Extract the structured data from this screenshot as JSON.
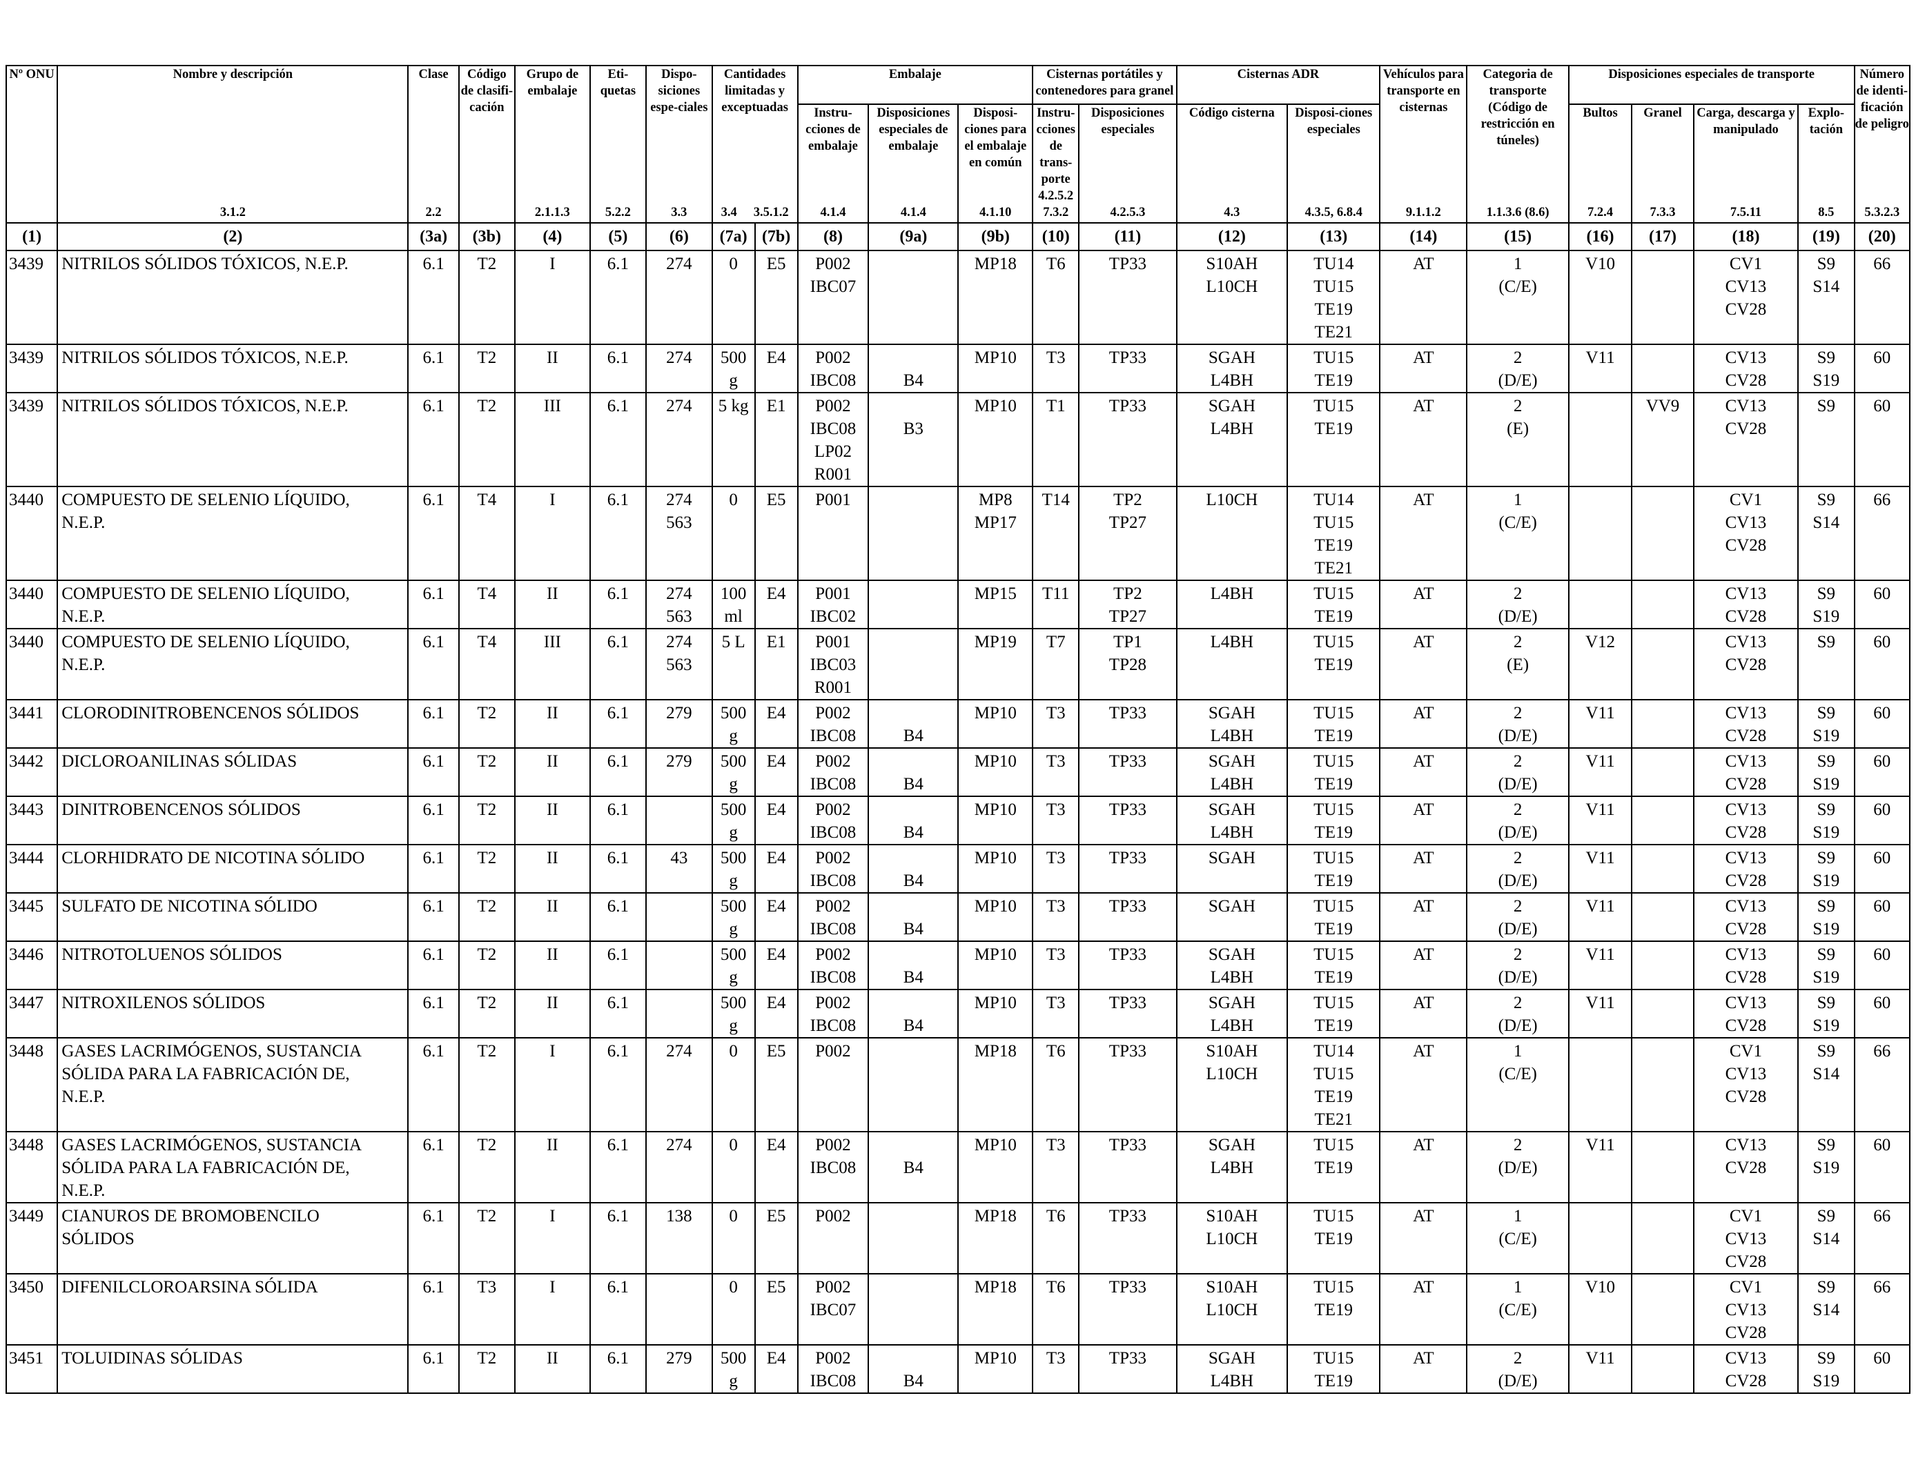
{
  "header": {
    "c1": {
      "label": "Nº ONU",
      "ref": ""
    },
    "c2": {
      "label": "Nombre y descripción",
      "ref": "3.1.2"
    },
    "c3a": {
      "label": "Clase",
      "ref": "2.2"
    },
    "c3b": {
      "label": "Código de clasifi-cación",
      "ref": ""
    },
    "c4": {
      "label": "Grupo de embalaje",
      "ref": "2.1.1.3"
    },
    "c5": {
      "label": "Eti-quetas",
      "ref": "5.2.2"
    },
    "c6": {
      "label": "Dispo-siciones espe-ciales",
      "ref": "3.3"
    },
    "c7": {
      "label": "Cantidades limitadas y exceptuadas",
      "ref_a": "3.4",
      "ref_b": "3.5.1.2"
    },
    "c8_9": {
      "label": "Embalaje"
    },
    "c8": {
      "label": "Instru-cciones de embalaje",
      "ref": "4.1.4"
    },
    "c9a": {
      "label": "Disposiciones especiales de embalaje",
      "ref": "4.1.4"
    },
    "c9b": {
      "label": "Disposi-ciones para el embalaje en común",
      "ref": "4.1.10"
    },
    "c10_11": {
      "label": "Cisternas portátiles y contenedores para granel"
    },
    "c10": {
      "label": "Instru-cciones de trans-porte",
      "ref": "4.2.5.2 7.3.2"
    },
    "c11": {
      "label": "Disposiciones especiales",
      "ref": "4.2.5.3"
    },
    "c12_13": {
      "label": "Cisternas ADR"
    },
    "c12": {
      "label": "Código cisterna",
      "ref": "4.3"
    },
    "c13": {
      "label": "Disposi-ciones especiales",
      "ref": "4.3.5, 6.8.4"
    },
    "c14": {
      "label": "Vehículos para transporte en cisternas",
      "ref": "9.1.1.2"
    },
    "c15": {
      "label": "Categoria de transporte (Código de restricción en túneles)",
      "ref": "1.1.3.6 (8.6)"
    },
    "c16_19": {
      "label": "Disposiciones especiales de transporte"
    },
    "c16": {
      "label": "Bultos",
      "ref": "7.2.4"
    },
    "c17": {
      "label": "Granel",
      "ref": "7.3.3"
    },
    "c18": {
      "label": "Carga, descarga y manipulado",
      "ref": "7.5.11"
    },
    "c19": {
      "label": "Explo-tación",
      "ref": "8.5"
    },
    "c20": {
      "label": "Número de identi-ficación de peligro",
      "ref": "5.3.2.3"
    },
    "numbers": [
      "(1)",
      "(2)",
      "(3a)",
      "(3b)",
      "(4)",
      "(5)",
      "(6)",
      "(7a)",
      "(7b)",
      "(8)",
      "(9a)",
      "(9b)",
      "(10)",
      "(11)",
      "(12)",
      "(13)",
      "(14)",
      "(15)",
      "(16)",
      "(17)",
      "(18)",
      "(19)",
      "(20)"
    ]
  },
  "rows": [
    [
      "3439",
      "NITRILOS SÓLIDOS TÓXICOS, N.E.P.",
      "6.1",
      "T2",
      "I",
      "6.1",
      "274",
      "0",
      "E5",
      "P002|IBC07",
      "",
      "MP18",
      "T6",
      "TP33",
      "S10AH|L10CH",
      "TU14|TU15|TE19|TE21",
      "AT",
      "1|(C/E)",
      "V10",
      "",
      "CV1|CV13|CV28",
      "S9|S14",
      "66"
    ],
    [
      "3439",
      "NITRILOS SÓLIDOS TÓXICOS, N.E.P.",
      "6.1",
      "T2",
      "II",
      "6.1",
      "274",
      "500|g",
      "E4",
      "P002|IBC08",
      "|B4",
      "MP10",
      "T3",
      "TP33",
      "SGAH|L4BH",
      "TU15|TE19",
      "AT",
      "2|(D/E)",
      "V11",
      "",
      "CV13|CV28",
      "S9|S19",
      "60"
    ],
    [
      "3439",
      "NITRILOS SÓLIDOS TÓXICOS, N.E.P.",
      "6.1",
      "T2",
      "III",
      "6.1",
      "274",
      "5 kg",
      "E1",
      "P002|IBC08|LP02|R001",
      "|B3",
      "MP10",
      "T1",
      "TP33",
      "SGAH|L4BH",
      "TU15|TE19",
      "AT",
      "2|(E)",
      "",
      "VV9",
      "CV13|CV28",
      "S9",
      "60"
    ],
    [
      "3440",
      "COMPUESTO DE SELENIO LÍQUIDO,|N.E.P.",
      "6.1",
      "T4",
      "I",
      "6.1",
      "274|563",
      "0",
      "E5",
      "P001",
      "",
      "MP8|MP17",
      "T14",
      "TP2|TP27",
      "L10CH",
      "TU14|TU15|TE19|TE21",
      "AT",
      "1|(C/E)",
      "",
      "",
      "CV1|CV13|CV28",
      "S9|S14",
      "66"
    ],
    [
      "3440",
      "COMPUESTO DE SELENIO LÍQUIDO,|N.E.P.",
      "6.1",
      "T4",
      "II",
      "6.1",
      "274|563",
      "100|ml",
      "E4",
      "P001|IBC02",
      "",
      "MP15",
      "T11",
      "TP2|TP27",
      "L4BH",
      "TU15|TE19",
      "AT",
      "2|(D/E)",
      "",
      "",
      "CV13|CV28",
      "S9|S19",
      "60"
    ],
    [
      "3440",
      "COMPUESTO DE SELENIO LÍQUIDO,|N.E.P.",
      "6.1",
      "T4",
      "III",
      "6.1",
      "274|563",
      "5 L",
      "E1",
      "P001|IBC03|R001",
      "",
      "MP19",
      "T7",
      "TP1|TP28",
      "L4BH",
      "TU15|TE19",
      "AT",
      "2|(E)",
      "V12",
      "",
      "CV13|CV28",
      "S9",
      "60"
    ],
    [
      "3441",
      "CLORODINITROBENCENOS SÓLIDOS",
      "6.1",
      "T2",
      "II",
      "6.1",
      "279",
      "500|g",
      "E4",
      "P002|IBC08",
      "|B4",
      "MP10",
      "T3",
      "TP33",
      "SGAH|L4BH",
      "TU15|TE19",
      "AT",
      "2|(D/E)",
      "V11",
      "",
      "CV13|CV28",
      "S9|S19",
      "60"
    ],
    [
      "3442",
      "DICLOROANILINAS SÓLIDAS",
      "6.1",
      "T2",
      "II",
      "6.1",
      "279",
      "500|g",
      "E4",
      "P002|IBC08",
      "|B4",
      "MP10",
      "T3",
      "TP33",
      "SGAH|L4BH",
      "TU15|TE19",
      "AT",
      "2|(D/E)",
      "V11",
      "",
      "CV13|CV28",
      "S9|S19",
      "60"
    ],
    [
      "3443",
      "DINITROBENCENOS SÓLIDOS",
      "6.1",
      "T2",
      "II",
      "6.1",
      "",
      "500|g",
      "E4",
      "P002|IBC08",
      "|B4",
      "MP10",
      "T3",
      "TP33",
      "SGAH|L4BH",
      "TU15|TE19",
      "AT",
      "2|(D/E)",
      "V11",
      "",
      "CV13|CV28",
      "S9|S19",
      "60"
    ],
    [
      "3444",
      "CLORHIDRATO DE NICOTINA SÓLIDO",
      "6.1",
      "T2",
      "II",
      "6.1",
      "43",
      "500|g",
      "E4",
      "P002|IBC08",
      "|B4",
      "MP10",
      "T3",
      "TP33",
      "SGAH",
      "TU15|TE19",
      "AT",
      "2|(D/E)",
      "V11",
      "",
      "CV13|CV28",
      "S9|S19",
      "60"
    ],
    [
      "3445",
      "SULFATO DE NICOTINA SÓLIDO",
      "6.1",
      "T2",
      "II",
      "6.1",
      "",
      "500|g",
      "E4",
      "P002|IBC08",
      "|B4",
      "MP10",
      "T3",
      "TP33",
      "SGAH",
      "TU15|TE19",
      "AT",
      "2|(D/E)",
      "V11",
      "",
      "CV13|CV28",
      "S9|S19",
      "60"
    ],
    [
      "3446",
      "NITROTOLUENOS SÓLIDOS",
      "6.1",
      "T2",
      "II",
      "6.1",
      "",
      "500|g",
      "E4",
      "P002|IBC08",
      "|B4",
      "MP10",
      "T3",
      "TP33",
      "SGAH|L4BH",
      "TU15|TE19",
      "AT",
      "2|(D/E)",
      "V11",
      "",
      "CV13|CV28",
      "S9|S19",
      "60"
    ],
    [
      "3447",
      "NITROXILENOS SÓLIDOS",
      "6.1",
      "T2",
      "II",
      "6.1",
      "",
      "500|g",
      "E4",
      "P002|IBC08",
      "|B4",
      "MP10",
      "T3",
      "TP33",
      "SGAH|L4BH",
      "TU15|TE19",
      "AT",
      "2|(D/E)",
      "V11",
      "",
      "CV13|CV28",
      "S9|S19",
      "60"
    ],
    [
      "3448",
      "GASES LACRIMÓGENOS, SUSTANCIA|SÓLIDA PARA LA FABRICACIÓN DE,|N.E.P.",
      "6.1",
      "T2",
      "I",
      "6.1",
      "274",
      "0",
      "E5",
      "P002",
      "",
      "MP18",
      "T6",
      "TP33",
      "S10AH|L10CH",
      "TU14|TU15|TE19|TE21",
      "AT",
      "1|(C/E)",
      "",
      "",
      "CV1|CV13|CV28",
      "S9|S14",
      "66"
    ],
    [
      "3448",
      "GASES LACRIMÓGENOS, SUSTANCIA|SÓLIDA PARA LA FABRICACIÓN DE,|N.E.P.",
      "6.1",
      "T2",
      "II",
      "6.1",
      "274",
      "0",
      "E4",
      "P002|IBC08",
      "|B4",
      "MP10",
      "T3",
      "TP33",
      "SGAH|L4BH",
      "TU15|TE19",
      "AT",
      "2|(D/E)",
      "V11",
      "",
      "CV13|CV28",
      "S9|S19",
      "60"
    ],
    [
      "3449",
      "CIANUROS DE BROMOBENCILO|SÓLIDOS",
      "6.1",
      "T2",
      "I",
      "6.1",
      "138",
      "0",
      "E5",
      "P002",
      "",
      "MP18",
      "T6",
      "TP33",
      "S10AH|L10CH",
      "TU15|TE19",
      "AT",
      "1|(C/E)",
      "",
      "",
      "CV1|CV13|CV28",
      "S9|S14",
      "66"
    ],
    [
      "3450",
      "DIFENILCLOROARSINA SÓLIDA",
      "6.1",
      "T3",
      "I",
      "6.1",
      "",
      "0",
      "E5",
      "P002|IBC07",
      "",
      "MP18",
      "T6",
      "TP33",
      "S10AH|L10CH",
      "TU15|TE19",
      "AT",
      "1|(C/E)",
      "V10",
      "",
      "CV1|CV13|CV28",
      "S9|S14",
      "66"
    ],
    [
      "3451",
      "TOLUIDINAS SÓLIDAS",
      "6.1",
      "T2",
      "II",
      "6.1",
      "279",
      "500|g",
      "E4",
      "P002|IBC08",
      "|B4",
      "MP10",
      "T3",
      "TP33",
      "SGAH|L4BH",
      "TU15|TE19",
      "AT",
      "2|(D/E)",
      "V11",
      "",
      "CV13|CV28",
      "S9|S19",
      "60"
    ]
  ]
}
